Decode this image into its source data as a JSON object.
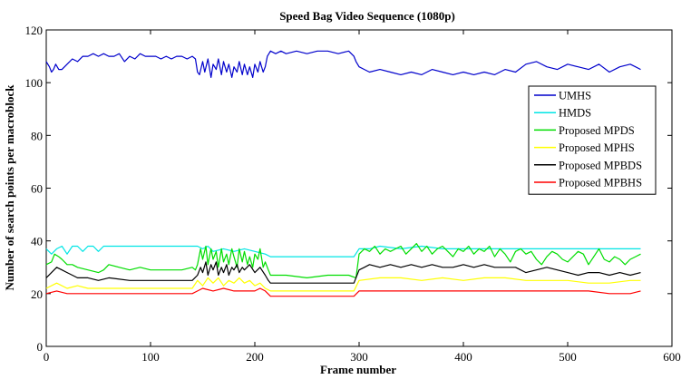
{
  "chart_data": {
    "type": "line",
    "title": "Speed  Bag Video Sequence (1080p)",
    "xlabel": "Frame number",
    "ylabel": "Number of search points per macroblock",
    "xlim": [
      0,
      600
    ],
    "ylim": [
      0,
      120
    ],
    "xticks": [
      0,
      100,
      200,
      300,
      400,
      500,
      600
    ],
    "yticks": [
      0,
      20,
      40,
      60,
      80,
      100,
      120
    ],
    "grid": false,
    "legend_position": "right",
    "series": [
      {
        "name": "UMHS",
        "color": "#0000cc",
        "x": [
          0,
          3,
          5,
          7,
          9,
          12,
          15,
          20,
          25,
          30,
          35,
          40,
          45,
          50,
          55,
          60,
          65,
          70,
          75,
          80,
          85,
          90,
          95,
          100,
          105,
          110,
          115,
          120,
          125,
          130,
          135,
          140,
          143,
          145,
          147,
          150,
          152,
          155,
          158,
          160,
          163,
          165,
          168,
          170,
          173,
          175,
          178,
          180,
          183,
          185,
          188,
          190,
          193,
          195,
          198,
          200,
          203,
          205,
          208,
          210,
          212,
          215,
          220,
          225,
          230,
          240,
          250,
          260,
          270,
          280,
          290,
          295,
          297,
          300,
          305,
          310,
          320,
          330,
          340,
          350,
          360,
          370,
          380,
          390,
          400,
          410,
          420,
          430,
          440,
          450,
          460,
          470,
          480,
          490,
          500,
          510,
          520,
          530,
          540,
          550,
          560,
          565,
          570
        ],
        "values": [
          108,
          106,
          104,
          105,
          107,
          105,
          105,
          107,
          109,
          108,
          110,
          110,
          111,
          110,
          111,
          110,
          110,
          111,
          108,
          110,
          109,
          111,
          110,
          110,
          110,
          109,
          110,
          109,
          110,
          110,
          109,
          110,
          109,
          104,
          103,
          108,
          104,
          109,
          102,
          107,
          105,
          109,
          103,
          108,
          104,
          107,
          102,
          106,
          104,
          108,
          103,
          107,
          103,
          106,
          102,
          107,
          104,
          108,
          104,
          106,
          110,
          112,
          111,
          112,
          111,
          112,
          111,
          112,
          112,
          111,
          112,
          110,
          108,
          106,
          105,
          104,
          105,
          104,
          103,
          104,
          103,
          105,
          104,
          103,
          104,
          103,
          104,
          103,
          105,
          104,
          107,
          108,
          106,
          105,
          107,
          106,
          105,
          107,
          104,
          106,
          107,
          106,
          105
        ]
      },
      {
        "name": "HMDS",
        "color": "#00e5e5",
        "x": [
          0,
          5,
          10,
          15,
          20,
          25,
          30,
          35,
          40,
          45,
          50,
          55,
          60,
          70,
          80,
          90,
          100,
          110,
          120,
          130,
          140,
          145,
          150,
          155,
          160,
          170,
          180,
          190,
          200,
          210,
          215,
          220,
          240,
          260,
          280,
          295,
          300,
          310,
          320,
          340,
          360,
          380,
          400,
          420,
          440,
          460,
          480,
          500,
          520,
          540,
          560,
          570
        ],
        "values": [
          37,
          35,
          37,
          38,
          35,
          38,
          38,
          36,
          38,
          38,
          36,
          38,
          38,
          38,
          38,
          38,
          38,
          38,
          38,
          38,
          38,
          38,
          37,
          38,
          36,
          37,
          36,
          37,
          36,
          35,
          34,
          34,
          34,
          34,
          34,
          34,
          37,
          37,
          38,
          37,
          38,
          37,
          37,
          37,
          37,
          37,
          37,
          37,
          37,
          37,
          37,
          37
        ]
      },
      {
        "name": "Proposed MPDS",
        "color": "#00dd00",
        "x": [
          0,
          5,
          8,
          12,
          15,
          20,
          25,
          30,
          40,
          50,
          55,
          60,
          70,
          80,
          90,
          100,
          110,
          120,
          130,
          140,
          143,
          145,
          148,
          150,
          153,
          155,
          158,
          160,
          163,
          165,
          168,
          170,
          173,
          175,
          178,
          180,
          183,
          185,
          188,
          190,
          193,
          195,
          198,
          200,
          203,
          205,
          208,
          210,
          213,
          215,
          230,
          250,
          270,
          290,
          297,
          300,
          305,
          310,
          315,
          320,
          325,
          330,
          335,
          340,
          345,
          350,
          355,
          360,
          365,
          370,
          375,
          380,
          385,
          390,
          395,
          400,
          405,
          410,
          415,
          420,
          425,
          430,
          435,
          440,
          445,
          450,
          455,
          460,
          465,
          470,
          475,
          480,
          485,
          490,
          495,
          500,
          505,
          510,
          515,
          520,
          525,
          530,
          535,
          540,
          545,
          550,
          555,
          560,
          565,
          570
        ],
        "values": [
          31,
          32,
          35,
          34,
          33,
          31,
          31,
          30,
          29,
          28,
          29,
          31,
          30,
          29,
          30,
          29,
          29,
          29,
          29,
          30,
          29,
          31,
          37,
          33,
          38,
          31,
          37,
          33,
          36,
          30,
          37,
          32,
          35,
          31,
          37,
          34,
          30,
          37,
          32,
          36,
          31,
          34,
          30,
          35,
          33,
          37,
          30,
          32,
          29,
          27,
          27,
          26,
          27,
          27,
          26,
          35,
          37,
          36,
          38,
          35,
          37,
          36,
          37,
          38,
          35,
          37,
          39,
          36,
          38,
          35,
          37,
          38,
          36,
          34,
          37,
          36,
          38,
          35,
          37,
          36,
          38,
          34,
          37,
          35,
          32,
          36,
          37,
          35,
          36,
          33,
          31,
          34,
          36,
          35,
          33,
          32,
          34,
          36,
          35,
          31,
          34,
          37,
          33,
          32,
          34,
          33,
          31,
          33,
          34,
          35
        ]
      },
      {
        "name": "Proposed MPHS",
        "color": "#ffff00",
        "x": [
          0,
          10,
          20,
          30,
          40,
          60,
          80,
          100,
          120,
          140,
          145,
          150,
          155,
          160,
          165,
          170,
          175,
          180,
          185,
          190,
          195,
          200,
          205,
          210,
          215,
          250,
          295,
          300,
          320,
          340,
          360,
          380,
          400,
          420,
          440,
          460,
          480,
          500,
          520,
          540,
          560,
          570
        ],
        "values": [
          22,
          24,
          22,
          23,
          22,
          22,
          22,
          22,
          22,
          22,
          25,
          23,
          26,
          24,
          26,
          23,
          25,
          24,
          26,
          24,
          25,
          23,
          24,
          22,
          21,
          21,
          21,
          25,
          26,
          26,
          25,
          26,
          25,
          26,
          26,
          25,
          25,
          25,
          24,
          24,
          25,
          25
        ]
      },
      {
        "name": "Proposed MPBDS",
        "color": "#000000",
        "x": [
          0,
          5,
          10,
          15,
          20,
          25,
          30,
          40,
          50,
          60,
          80,
          100,
          120,
          140,
          145,
          148,
          150,
          153,
          155,
          158,
          160,
          163,
          165,
          168,
          170,
          173,
          175,
          178,
          180,
          183,
          185,
          188,
          190,
          195,
          200,
          205,
          210,
          213,
          215,
          230,
          250,
          270,
          295,
          300,
          305,
          310,
          320,
          330,
          340,
          350,
          360,
          370,
          380,
          390,
          400,
          410,
          420,
          430,
          440,
          450,
          460,
          470,
          480,
          490,
          500,
          510,
          520,
          530,
          540,
          550,
          560,
          570
        ],
        "values": [
          26,
          28,
          30,
          29,
          28,
          27,
          26,
          26,
          25,
          26,
          25,
          25,
          25,
          25,
          27,
          30,
          28,
          32,
          27,
          31,
          29,
          32,
          27,
          30,
          28,
          31,
          27,
          30,
          29,
          31,
          28,
          30,
          29,
          31,
          28,
          30,
          27,
          25,
          24,
          24,
          24,
          24,
          24,
          29,
          30,
          31,
          30,
          31,
          30,
          31,
          30,
          31,
          30,
          30,
          31,
          30,
          31,
          30,
          30,
          30,
          28,
          29,
          30,
          29,
          28,
          27,
          28,
          28,
          27,
          28,
          27,
          28
        ]
      },
      {
        "name": "Proposed MPBHS",
        "color": "#ff0000",
        "x": [
          0,
          10,
          20,
          40,
          60,
          80,
          100,
          120,
          140,
          145,
          150,
          160,
          170,
          180,
          190,
          200,
          205,
          210,
          215,
          250,
          295,
          300,
          320,
          340,
          360,
          380,
          400,
          420,
          440,
          460,
          480,
          500,
          520,
          540,
          560,
          570
        ],
        "values": [
          20,
          21,
          20,
          20,
          20,
          20,
          20,
          20,
          20,
          21,
          22,
          21,
          22,
          21,
          21,
          21,
          22,
          21,
          19,
          19,
          19,
          21,
          21,
          21,
          21,
          21,
          21,
          21,
          21,
          21,
          21,
          21,
          21,
          20,
          20,
          21
        ]
      }
    ]
  }
}
